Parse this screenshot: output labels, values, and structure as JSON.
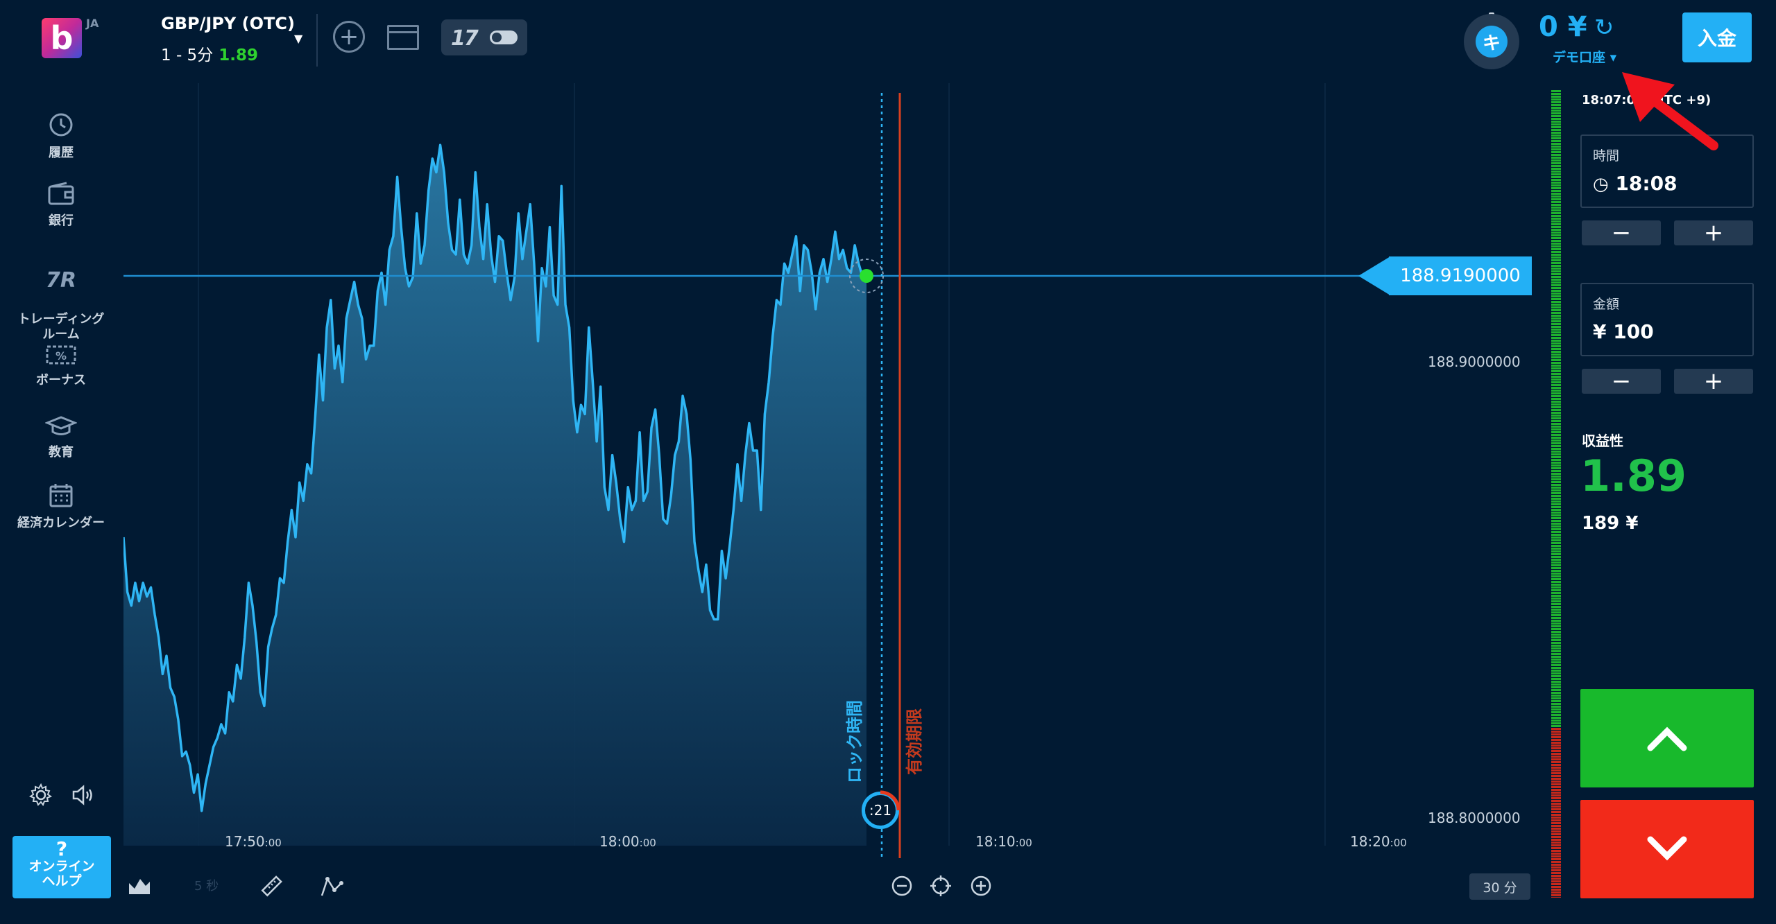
{
  "header": {
    "lang": "JA",
    "asset": "GBP/JPY (OTC)",
    "expiry_range": "1 - 5分",
    "payout": "1.89",
    "tv_logo": "17",
    "timer_glyph": "キ",
    "balance": "0 ¥",
    "account_type": "デモ口座 ▾",
    "deposit_label": "入金"
  },
  "sidebar": {
    "items": [
      {
        "label": "履歴",
        "icon": "history-icon"
      },
      {
        "label": "銀行",
        "icon": "wallet-icon"
      },
      {
        "label": "トレーディング\nルーム",
        "icon": "tr-icon"
      },
      {
        "label": "ボーナス",
        "icon": "bonus-icon"
      },
      {
        "label": "教育",
        "icon": "graduation-cap-icon"
      },
      {
        "label": "経済カレンダー",
        "icon": "calendar-icon"
      }
    ],
    "help_q": "?",
    "help_label_1": "オンライン",
    "help_label_2": "ヘルプ"
  },
  "chart": {
    "type": "area",
    "current_price": "188.9190000",
    "y_ticks": [
      "188.9000000",
      "188.8000000"
    ],
    "x_ticks": [
      {
        "main": "17:50",
        "sub": ":00"
      },
      {
        "main": "18:00",
        "sub": ":00"
      },
      {
        "main": "18:10",
        "sub": ":00"
      },
      {
        "main": "18:20",
        "sub": ":00"
      }
    ],
    "lock_time_label": "ロック時間",
    "expiry_label": "有効期限",
    "countdown": ":21",
    "interval": "30 分",
    "tick_label": "5 秒"
  },
  "chart_data": {
    "type": "area",
    "x_label": "",
    "y_label": "",
    "y_ticks": [
      188.9,
      188.8
    ],
    "current_value": 188.919,
    "values": [
      188.862,
      188.85,
      188.847,
      188.852,
      188.848,
      188.852,
      188.849,
      188.851,
      188.845,
      188.84,
      188.832,
      188.836,
      188.829,
      188.827,
      188.822,
      188.814,
      188.815,
      188.812,
      188.806,
      188.81,
      188.802,
      188.808,
      188.812,
      188.816,
      188.818,
      188.821,
      188.819,
      188.828,
      188.826,
      188.834,
      188.831,
      188.84,
      188.852,
      188.847,
      188.839,
      188.828,
      188.825,
      188.838,
      188.842,
      188.845,
      188.853,
      188.852,
      188.861,
      188.868,
      188.862,
      188.874,
      188.87,
      188.878,
      188.876,
      188.888,
      188.902,
      188.892,
      188.908,
      188.914,
      188.899,
      188.904,
      188.896,
      188.91,
      188.914,
      188.918,
      188.913,
      188.91,
      188.901,
      188.904,
      188.904,
      188.916,
      188.92,
      188.913,
      188.925,
      188.928,
      188.941,
      188.93,
      188.921,
      188.917,
      188.919,
      188.933,
      188.922,
      188.926,
      188.938,
      188.945,
      188.942,
      188.948,
      188.942,
      188.931,
      188.925,
      188.924,
      188.936,
      188.924,
      188.922,
      188.926,
      188.942,
      188.93,
      188.923,
      188.935,
      188.924,
      188.918,
      188.928,
      188.927,
      188.92,
      188.914,
      188.919,
      188.933,
      188.923,
      188.929,
      188.935,
      188.922,
      188.905,
      188.921,
      188.917,
      188.93,
      188.915,
      188.913,
      188.939,
      188.913,
      188.908,
      188.892,
      188.885,
      188.891,
      188.889,
      188.908,
      188.896,
      188.883,
      188.895,
      188.873,
      188.868,
      188.88,
      188.874,
      188.866,
      188.861,
      188.873,
      188.868,
      188.87,
      188.885,
      188.87,
      188.872,
      188.886,
      188.89,
      188.88,
      188.866,
      188.865,
      188.871,
      188.88,
      188.883,
      188.893,
      188.889,
      188.879,
      188.861,
      188.855,
      188.85,
      188.856,
      188.846,
      188.844,
      188.844,
      188.859,
      188.853,
      188.86,
      188.868,
      188.878,
      188.87,
      188.88,
      188.887,
      188.881,
      188.881,
      188.868,
      188.889,
      188.896,
      188.906,
      188.914,
      188.913,
      188.922,
      188.92,
      188.924,
      188.928,
      188.916,
      188.926,
      188.925,
      188.92,
      188.912,
      188.92,
      188.923,
      188.918,
      188.923,
      188.929,
      188.923,
      188.925,
      188.921,
      188.92,
      188.926,
      188.922,
      188.919,
      188.919
    ],
    "expiry_series_end": "18:06",
    "lock_time": "18:07",
    "expiry": "18:08"
  },
  "panel": {
    "clock": "18:07:08 (UTC +9)",
    "time_label": "時間",
    "time_value": "18:08",
    "amount_label": "金額",
    "amount_value": "¥ 100",
    "profit_label": "収益性",
    "profit_value": "1.89",
    "profit_amount": "189 ¥",
    "colors": {
      "up": "#18b92c",
      "down": "#f22a1a",
      "accent": "#23b0f5"
    }
  }
}
